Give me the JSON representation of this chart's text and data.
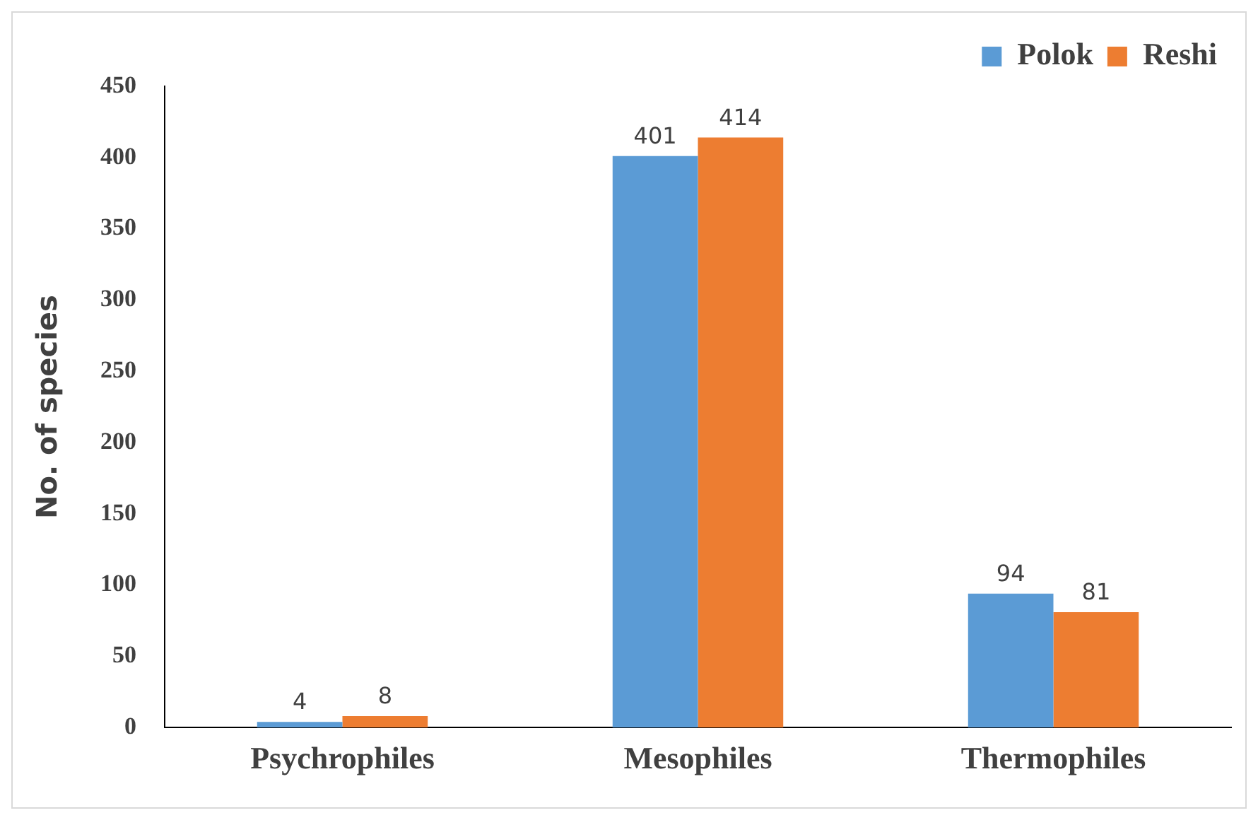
{
  "chart_data": {
    "type": "bar",
    "ylabel": "No. of species",
    "categories": [
      "Psychrophiles",
      "Mesophiles",
      "Thermophiles"
    ],
    "series": [
      {
        "name": "Polok",
        "color": "#5b9bd5",
        "values": [
          4,
          401,
          94
        ]
      },
      {
        "name": "Reshi",
        "color": "#ed7d31",
        "values": [
          8,
          414,
          81
        ]
      }
    ],
    "ylim": [
      0,
      450
    ],
    "yticks": [
      0,
      50,
      100,
      150,
      200,
      250,
      300,
      350,
      400,
      450
    ],
    "grid": false,
    "legend": "top right",
    "data_labels": true
  }
}
